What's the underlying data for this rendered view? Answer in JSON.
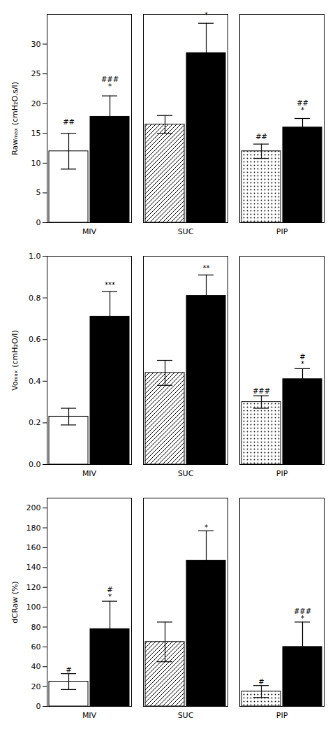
{
  "chart_data": [
    {
      "type": "bar",
      "ylabel": "Rawₘₐₓ (cmH₂O.s/l)",
      "categories": [
        "MIV",
        "SUC",
        "PIP"
      ],
      "ylim": [
        0,
        35
      ],
      "yticks": [
        0,
        5,
        10,
        15,
        20,
        25,
        30
      ],
      "series": [
        {
          "color": "white",
          "values": [
            12.0,
            16.5,
            12.0
          ],
          "errors": [
            3.0,
            1.5,
            1.2
          ],
          "annotations": [
            "##",
            null,
            "##"
          ],
          "annotation_y": [
            16.5,
            null,
            14.0
          ]
        },
        {
          "color": "black",
          "values": [
            17.8,
            28.5,
            16.0
          ],
          "errors": [
            3.5,
            5.0,
            1.5
          ],
          "annotations": [
            "###\n*",
            "*",
            "##\n*"
          ],
          "annotation_y": [
            22.5,
            34.5,
            18.5
          ]
        }
      ]
    },
    {
      "type": "bar",
      "ylabel": "Voₘₐₓ (cmH₂O/l)",
      "categories": [
        "MIV",
        "SUC",
        "PIP"
      ],
      "ylim": [
        0.0,
        1.0
      ],
      "yticks": [
        {
          "value": 0.0,
          "label": "0.0"
        },
        0.2,
        0.4,
        0.6,
        0.8,
        {
          "value": 1.0,
          "label": "1.0"
        }
      ],
      "series": [
        {
          "color": "white",
          "values": [
            0.23,
            0.44,
            0.3
          ],
          "errors": [
            0.04,
            0.06,
            0.03
          ],
          "annotations": [
            null,
            null,
            "###"
          ],
          "annotation_y": [
            null,
            null,
            0.34
          ]
        },
        {
          "color": "black",
          "values": [
            0.71,
            0.81,
            0.41
          ],
          "errors": [
            0.12,
            0.1,
            0.05
          ],
          "annotations": [
            "***",
            "**",
            "#\n*"
          ],
          "annotation_y": [
            0.85,
            0.93,
            0.47
          ]
        }
      ]
    },
    {
      "type": "bar",
      "ylabel": "dCRaw (%)",
      "categories": [
        "MIV",
        "SUC",
        "PIP"
      ],
      "ylim": [
        0,
        210
      ],
      "yticks": [
        0,
        20,
        40,
        60,
        80,
        100,
        120,
        140,
        160,
        180,
        200
      ],
      "series": [
        {
          "color": "white",
          "values": [
            25.0,
            65.0,
            15.0
          ],
          "errors": [
            8.0,
            20.0,
            6.0
          ],
          "annotations": [
            "#",
            null,
            "#"
          ],
          "annotation_y": [
            34.0,
            null,
            22.0
          ]
        },
        {
          "color": "black",
          "values": [
            78.0,
            147.0,
            60.0
          ],
          "errors": [
            28.0,
            30.0,
            25.0
          ],
          "annotations": [
            "#\n*",
            "*",
            "###\n*"
          ],
          "annotation_y": [
            108.0,
            178.0,
            86.0
          ]
        }
      ]
    }
  ]
}
